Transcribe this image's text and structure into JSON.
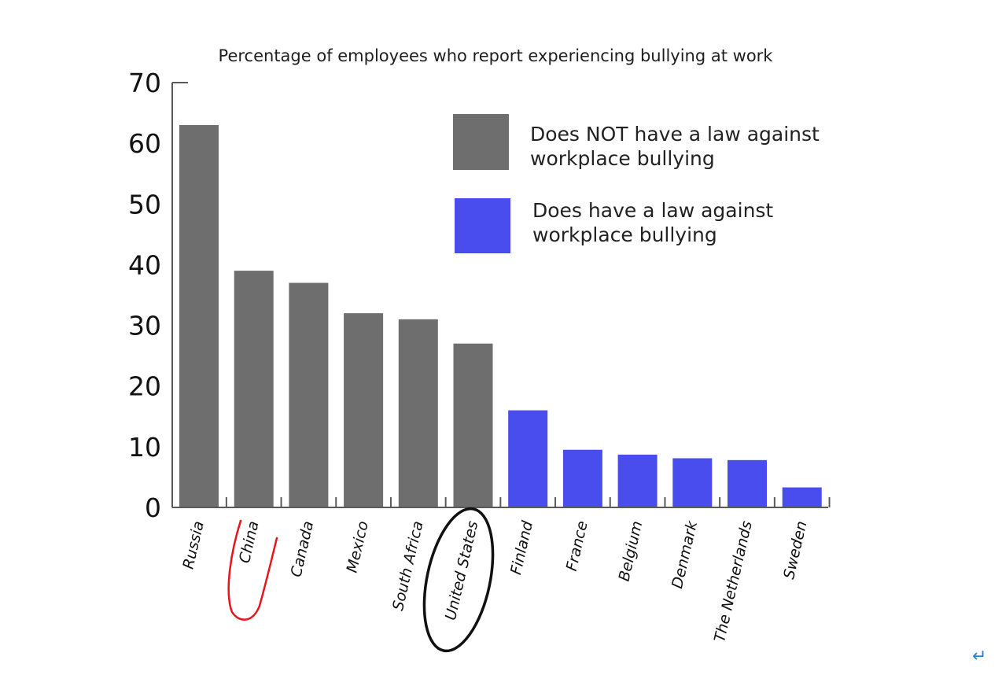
{
  "chart_data": {
    "type": "bar",
    "title": "Percentage of employees who report experiencing bullying at work",
    "xlabel": "",
    "ylabel": "",
    "ylim": [
      0,
      70
    ],
    "yticks": [
      "0",
      "10",
      "20",
      "30",
      "40",
      "50",
      "60",
      "70"
    ],
    "categories": [
      "Russia",
      "China",
      "Canada",
      "Mexico",
      "South Africa",
      "United States",
      "Finland",
      "France",
      "Belgium",
      "Denmark",
      "The Netherlands",
      "Sweden"
    ],
    "values": [
      63,
      39,
      37,
      32,
      31,
      27,
      16,
      9.5,
      8.7,
      8.1,
      7.8,
      3.3
    ],
    "groups": [
      "no_law",
      "no_law",
      "no_law",
      "no_law",
      "no_law",
      "no_law",
      "law",
      "law",
      "law",
      "law",
      "law",
      "law"
    ],
    "legend": [
      {
        "key": "no_law",
        "line1": "Does NOT have a law against",
        "line2": "workplace bullying",
        "color": "#6e6e6e"
      },
      {
        "key": "law",
        "line1": "Does have a law against",
        "line2": "workplace bullying",
        "color": "#4a4ded"
      }
    ],
    "legend_position": "top-right",
    "grid": false,
    "annotations": [
      {
        "type": "handwritten-underline",
        "target": "China",
        "color": "#e8141b"
      },
      {
        "type": "handwritten-ellipse",
        "target": "United States",
        "color": "#111111"
      }
    ]
  },
  "return_glyph": "↵"
}
